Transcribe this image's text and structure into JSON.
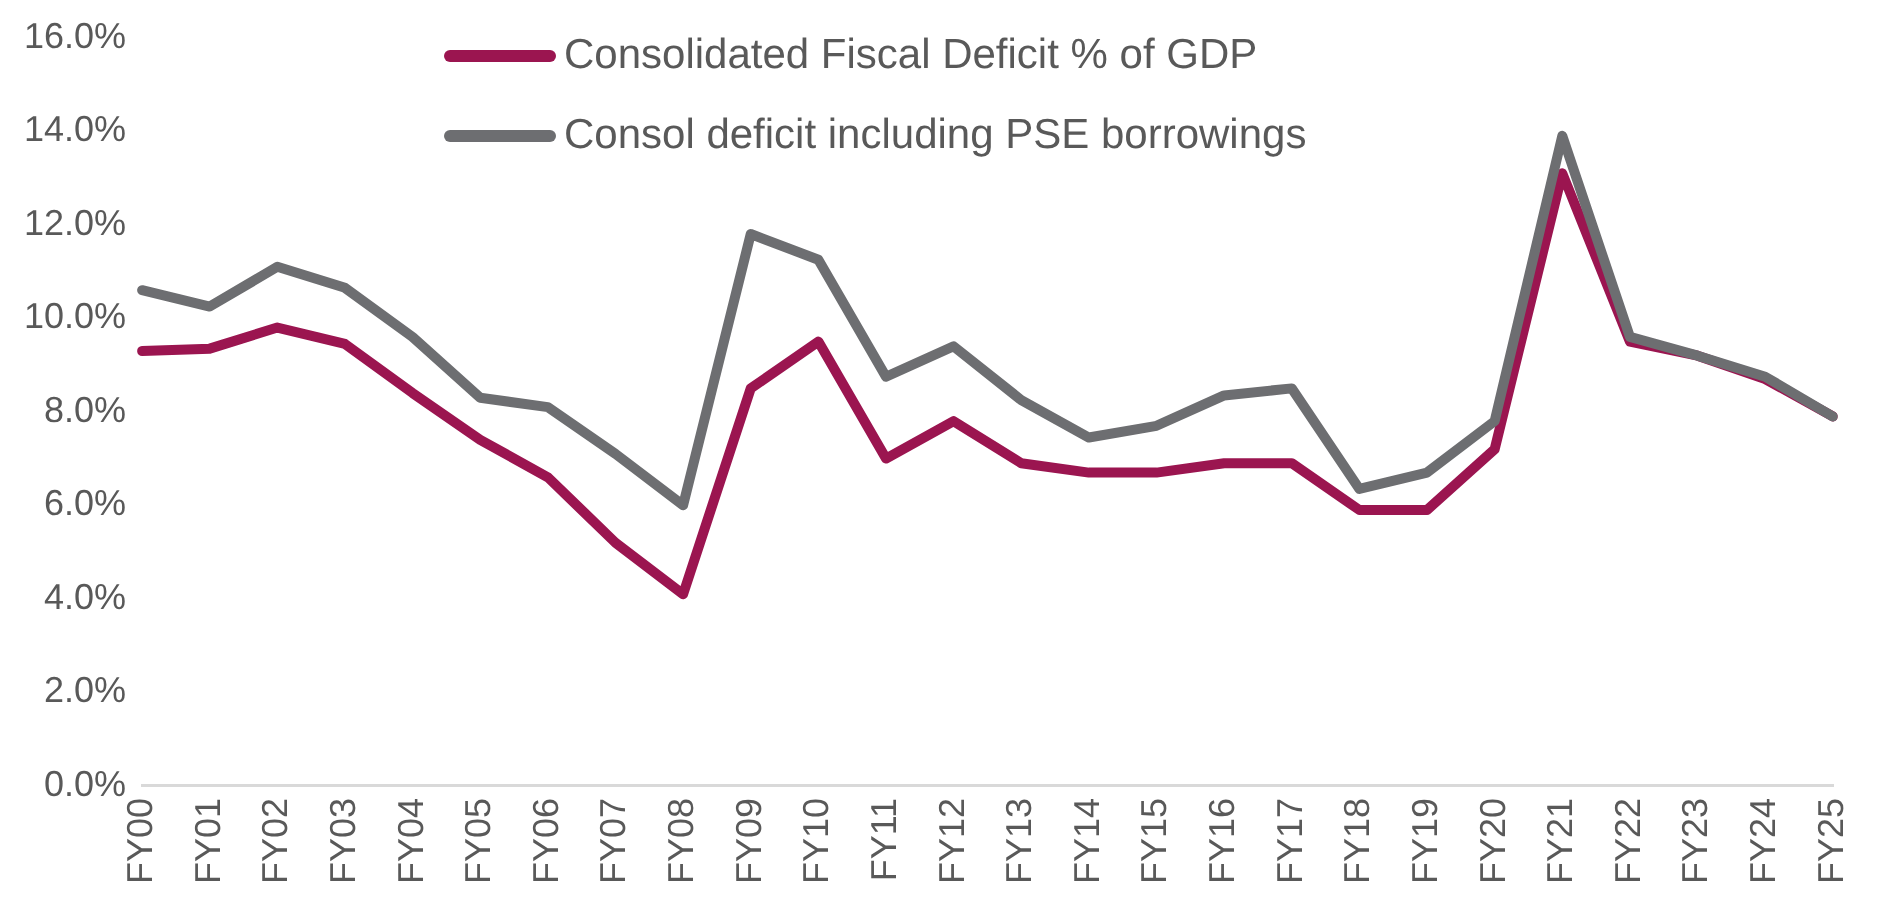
{
  "chart_data": {
    "type": "line",
    "categories": [
      "FY00",
      "FY01",
      "FY02",
      "FY03",
      "FY04",
      "FY05",
      "FY06",
      "FY07",
      "FY08",
      "FY09",
      "FY10",
      "FY11",
      "FY12",
      "FY13",
      "FY14",
      "FY15",
      "FY16",
      "FY17",
      "FY18",
      "FY19",
      "FY20",
      "FY21",
      "FY22",
      "FY23",
      "FY24",
      "FY25"
    ],
    "series": [
      {
        "name": "Consolidated Fiscal Deficit % of GDP",
        "color": "#9b1550",
        "values": [
          9.3,
          9.35,
          9.8,
          9.45,
          8.4,
          7.4,
          6.6,
          5.2,
          4.1,
          8.5,
          9.5,
          7.0,
          7.8,
          6.9,
          6.7,
          6.7,
          6.9,
          6.9,
          5.9,
          5.9,
          7.2,
          13.1,
          9.5,
          9.2,
          8.7,
          7.9
        ]
      },
      {
        "name": "Consol deficit including PSE borrowings",
        "color": "#6d6e71",
        "values": [
          10.6,
          10.25,
          11.1,
          10.65,
          9.6,
          8.3,
          8.1,
          7.1,
          6.0,
          11.8,
          11.25,
          8.75,
          9.4,
          8.25,
          7.45,
          7.7,
          8.35,
          8.5,
          6.35,
          6.7,
          7.8,
          13.9,
          9.6,
          9.2,
          8.75,
          7.9
        ]
      }
    ],
    "ylim": [
      0,
      16
    ],
    "yticks": [
      {
        "value": 0,
        "label": "0.0%"
      },
      {
        "value": 2,
        "label": "2.0%"
      },
      {
        "value": 4,
        "label": "4.0%"
      },
      {
        "value": 6,
        "label": "6.0%"
      },
      {
        "value": 8,
        "label": "8.0%"
      },
      {
        "value": 10,
        "label": "10.0%"
      },
      {
        "value": 12,
        "label": "12.0%"
      },
      {
        "value": 14,
        "label": "14.0%"
      },
      {
        "value": 16,
        "label": "16.0%"
      }
    ],
    "grid": false,
    "legend": "top",
    "marker": "none",
    "line_style": "solid"
  }
}
